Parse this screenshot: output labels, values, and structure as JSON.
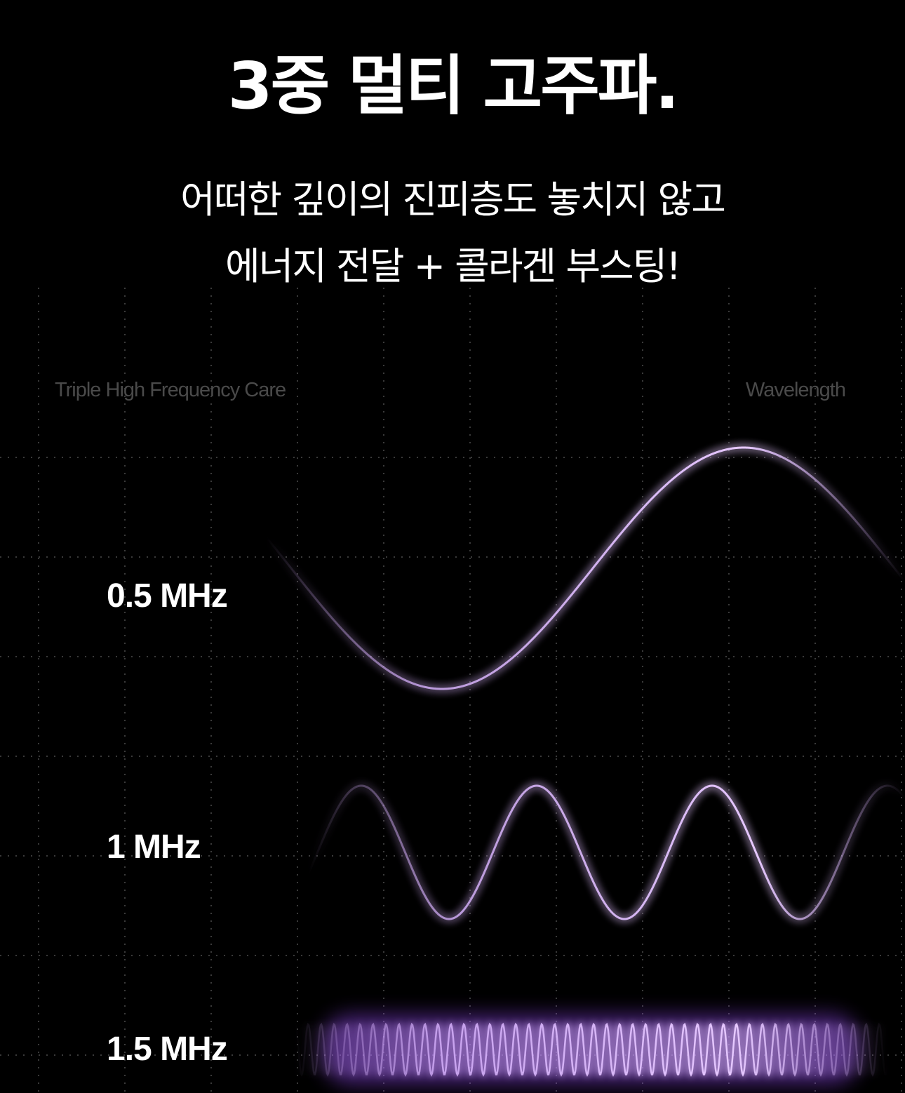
{
  "heading": "3중 멀티 고주파.",
  "subheading": [
    "어떠한 깊이의 진피층도 놓치지 않고",
    "에너지 전달 + 콜라겐 부스팅!"
  ],
  "captions": {
    "left": "Triple High Frequency Care",
    "right": "Wavelength"
  },
  "waves": [
    {
      "label": "0.5 MHz",
      "cycles_relative": 1
    },
    {
      "label": "1 MHz",
      "cycles_relative": 2
    },
    {
      "label": "1.5 MHz",
      "cycles_relative": 3
    }
  ],
  "colors": {
    "background": "#000000",
    "wave": "#d9b3ff",
    "glow": "#9b4dff",
    "grid": "#3a3a3a",
    "caption": "#4a4a4a"
  }
}
